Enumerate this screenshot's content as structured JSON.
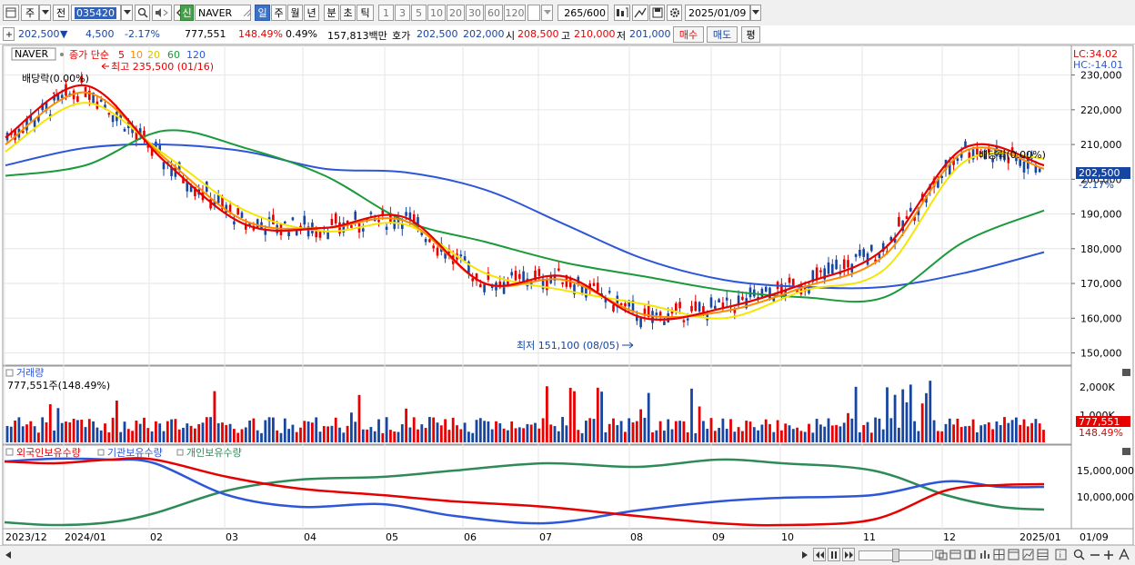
{
  "toolbar": {
    "tab_stock": "주",
    "tab_prev": "전",
    "stock_code": "035420",
    "stock_name": "NAVER",
    "stock_badge": "신",
    "periods": [
      "일",
      "주",
      "월",
      "년",
      "분",
      "초",
      "틱"
    ],
    "active_period": "일",
    "intervals": [
      "1",
      "3",
      "5",
      "10",
      "20",
      "30",
      "60",
      "120"
    ],
    "count": "265",
    "count_total": "/600",
    "date": "2025/01/09"
  },
  "info": {
    "price": "202,500",
    "direction": "▼",
    "change": "4,500",
    "change_pct": "-2.17%",
    "volume": "777,551",
    "volume_ratio": "148.49%",
    "turnover": "0.49%",
    "amount": "157,813백만",
    "ask_label": "호가",
    "ask1": "202,500",
    "ask2": "202,000",
    "open_label": "시",
    "open": "208,500",
    "high_label": "고",
    "high": "210,000",
    "low_label": "저",
    "low": "201,000",
    "buy_button": "매수",
    "sell_button": "매도",
    "eval_button": "평"
  },
  "price_panel": {
    "name_box": "NAVER",
    "legend_label": "종가 단순",
    "ma_periods": [
      "5",
      "10",
      "20",
      "60",
      "120"
    ],
    "high_annotation": "최고 235,500 (01/16)",
    "low_annotation": "최저 151,100 (08/05)",
    "dividend_label_1": "배당락(0.00%)",
    "dividend_label_2": "배당락(0.00%)",
    "lc": "LC:34.02",
    "hc": "HC:-14.01",
    "y_ticks": [
      "230,000",
      "220,000",
      "210,000",
      "200,000",
      "190,000",
      "180,000",
      "170,000",
      "160,000",
      "150,000"
    ],
    "current_price_tag": "202,500",
    "current_change_tag": "-2.17%"
  },
  "volume_panel": {
    "title": "거래량",
    "current_text": "777,551주(148.49%)",
    "y_ticks": [
      "2,000K",
      "1,000K"
    ],
    "tag_volume": "777,551",
    "tag_ratio": "148.49%"
  },
  "holdings_panel": {
    "legend": [
      "외국인보유수량",
      "기관보유수량",
      "개인보유수량"
    ],
    "y_ticks": [
      "15,000,000",
      "10,000,000"
    ]
  },
  "x_axis": {
    "labels": [
      "2023/12",
      "2024/01",
      "02",
      "03",
      "04",
      "05",
      "06",
      "07",
      "08",
      "09",
      "10",
      "11",
      "12",
      "2025/01"
    ],
    "right_label": "01/09"
  },
  "colors": {
    "up": "#e60000",
    "down": "#1746a2",
    "ma5": "#e60000",
    "ma10": "#ff8c00",
    "ma20": "#f5e600",
    "ma60": "#1a9a3a",
    "ma120": "#2d56d8",
    "foreign": "#e60000",
    "institution": "#2d56d8",
    "individual": "#2e8b57"
  },
  "chart_data": {
    "type": "line",
    "title": "NAVER",
    "ylim": [
      147000,
      238000
    ],
    "x": [
      "2023/12",
      "2024/01",
      "02",
      "03",
      "04",
      "05",
      "06",
      "07",
      "08",
      "09",
      "10",
      "11",
      "12",
      "2025/01"
    ],
    "series": [
      {
        "name": "5",
        "values": [
          212000,
          227000,
          205000,
          187000,
          186000,
          189000,
          170000,
          172000,
          160000,
          163000,
          170000,
          180000,
          209000,
          204000
        ]
      },
      {
        "name": "10",
        "values": [
          210000,
          225000,
          206000,
          188000,
          186000,
          188000,
          170000,
          171000,
          161000,
          162000,
          169000,
          178000,
          208000,
          203000
        ]
      },
      {
        "name": "20",
        "values": [
          208000,
          222000,
          207000,
          191000,
          185000,
          187000,
          173000,
          168000,
          164000,
          160000,
          168000,
          174000,
          205000,
          206000
        ]
      },
      {
        "name": "60",
        "values": [
          201000,
          204000,
          214000,
          209000,
          201000,
          188000,
          182000,
          176000,
          172000,
          168000,
          166000,
          166000,
          182000,
          191000
        ]
      },
      {
        "name": "120",
        "values": [
          204000,
          209000,
          210000,
          208000,
          203000,
          202000,
          197000,
          187000,
          177000,
          171000,
          169000,
          169000,
          173000,
          179000
        ]
      }
    ],
    "high": {
      "value": 235500,
      "date": "01/16"
    },
    "low": {
      "value": 151100,
      "date": "08/05"
    }
  }
}
